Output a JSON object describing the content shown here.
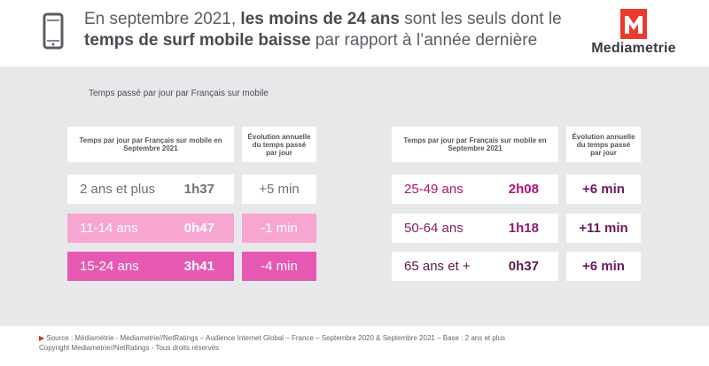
{
  "header": {
    "title_part1": "En septembre 2021, ",
    "title_bold1": "les moins de 24 ans",
    "title_part2": " sont les seuls dont le ",
    "title_bold2": "temps de surf mobile baisse",
    "title_part3": " par rapport à l’année dernière",
    "icon": "smartphone-icon"
  },
  "logo": {
    "letter": "M",
    "name": "Mediametrie",
    "color": "#e83a2f"
  },
  "subtitle": "Temps passé par jour par Français sur mobile",
  "columns": {
    "time_header": "Temps par jour par Français sur mobile en Septembre 2021",
    "evo_header": "Évolution annuelle du temps passé par jour"
  },
  "left_rows": [
    {
      "age": "2 ans et plus",
      "time": "1h37",
      "evolution": "+5 min",
      "bg": "#ffffff",
      "color": "#707078"
    },
    {
      "age": "11-14 ans",
      "time": "0h47",
      "evolution": "-1 min",
      "bg": "#f7a6d2",
      "color": "#ffffff"
    },
    {
      "age": "15-24 ans",
      "time": "3h41",
      "evolution": "-4 min",
      "bg": "#e659b3",
      "color": "#ffffff"
    }
  ],
  "right_rows": [
    {
      "age": "25-49 ans",
      "time": "2h08",
      "evolution": "+6 min",
      "age_color": "#b0127a",
      "time_color": "#b0127a",
      "evo_color": "#6d1a5b"
    },
    {
      "age": "50-64 ans",
      "time": "1h18",
      "evolution": "+11 min",
      "age_color": "#8a1e6c",
      "time_color": "#8a1e6c",
      "evo_color": "#6d1a5b"
    },
    {
      "age": "65 ans et +",
      "time": "0h37",
      "evolution": "+6 min",
      "age_color": "#5a1a4a",
      "time_color": "#5a1a4a",
      "evo_color": "#6d1a5b"
    }
  ],
  "footer": {
    "source": "Source : Médiamétrie - Mediametrie//NetRatings – Audience Internet Global – France – Septembre 2020 & Septembre 2021 – Base : 2 ans et plus",
    "copyright": "Copyright Mediametrie//NetRatings - Tous droits réservés"
  }
}
